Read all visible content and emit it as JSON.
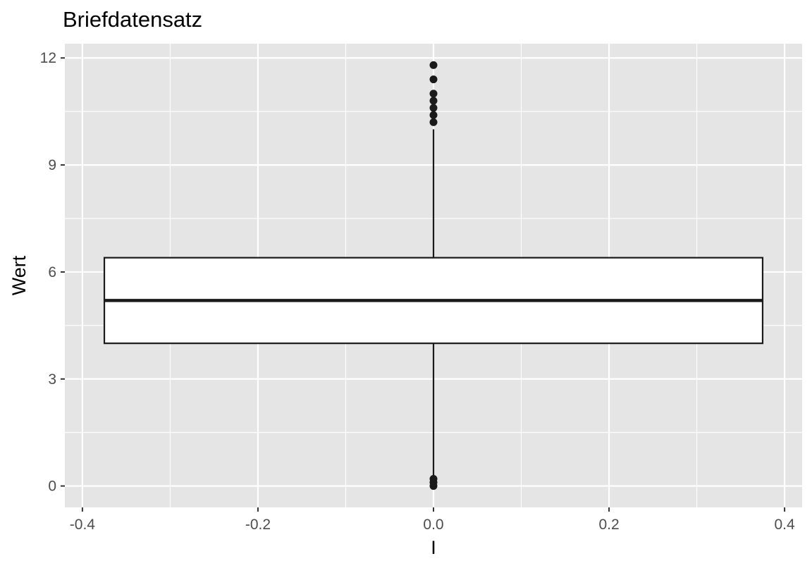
{
  "chart_data": {
    "type": "boxplot",
    "title": "Briefdatensatz",
    "xlabel": "I",
    "ylabel": "Wert",
    "xlim": [
      -0.42,
      0.42
    ],
    "ylim": [
      -0.6,
      12.4
    ],
    "x_ticks": [
      -0.4,
      -0.2,
      0.0,
      0.2,
      0.4
    ],
    "x_tick_labels": [
      "-0.4",
      "-0.2",
      "0.0",
      "0.2",
      "0.4"
    ],
    "y_ticks": [
      0,
      3,
      6,
      9,
      12
    ],
    "y_tick_labels": [
      "0",
      "3",
      "6",
      "9",
      "12"
    ],
    "grid": true,
    "box": {
      "x": 0.0,
      "xmin": -0.375,
      "xmax": 0.375,
      "q1": 4.0,
      "median": 5.2,
      "q3": 6.4,
      "whisker_low": 0.3,
      "whisker_high": 10.0
    },
    "outliers": [
      11.8,
      11.4,
      11.0,
      10.8,
      10.6,
      10.4,
      10.2,
      0.2,
      0.1,
      0.0
    ],
    "colors": {
      "panel_background": "#e5e5e5",
      "grid": "#ffffff",
      "box_fill": "#ffffff",
      "box_line": "#1a1a1a",
      "point": "#1a1a1a",
      "tick_text": "#4d4d4d",
      "tick_mark": "#333333"
    }
  }
}
